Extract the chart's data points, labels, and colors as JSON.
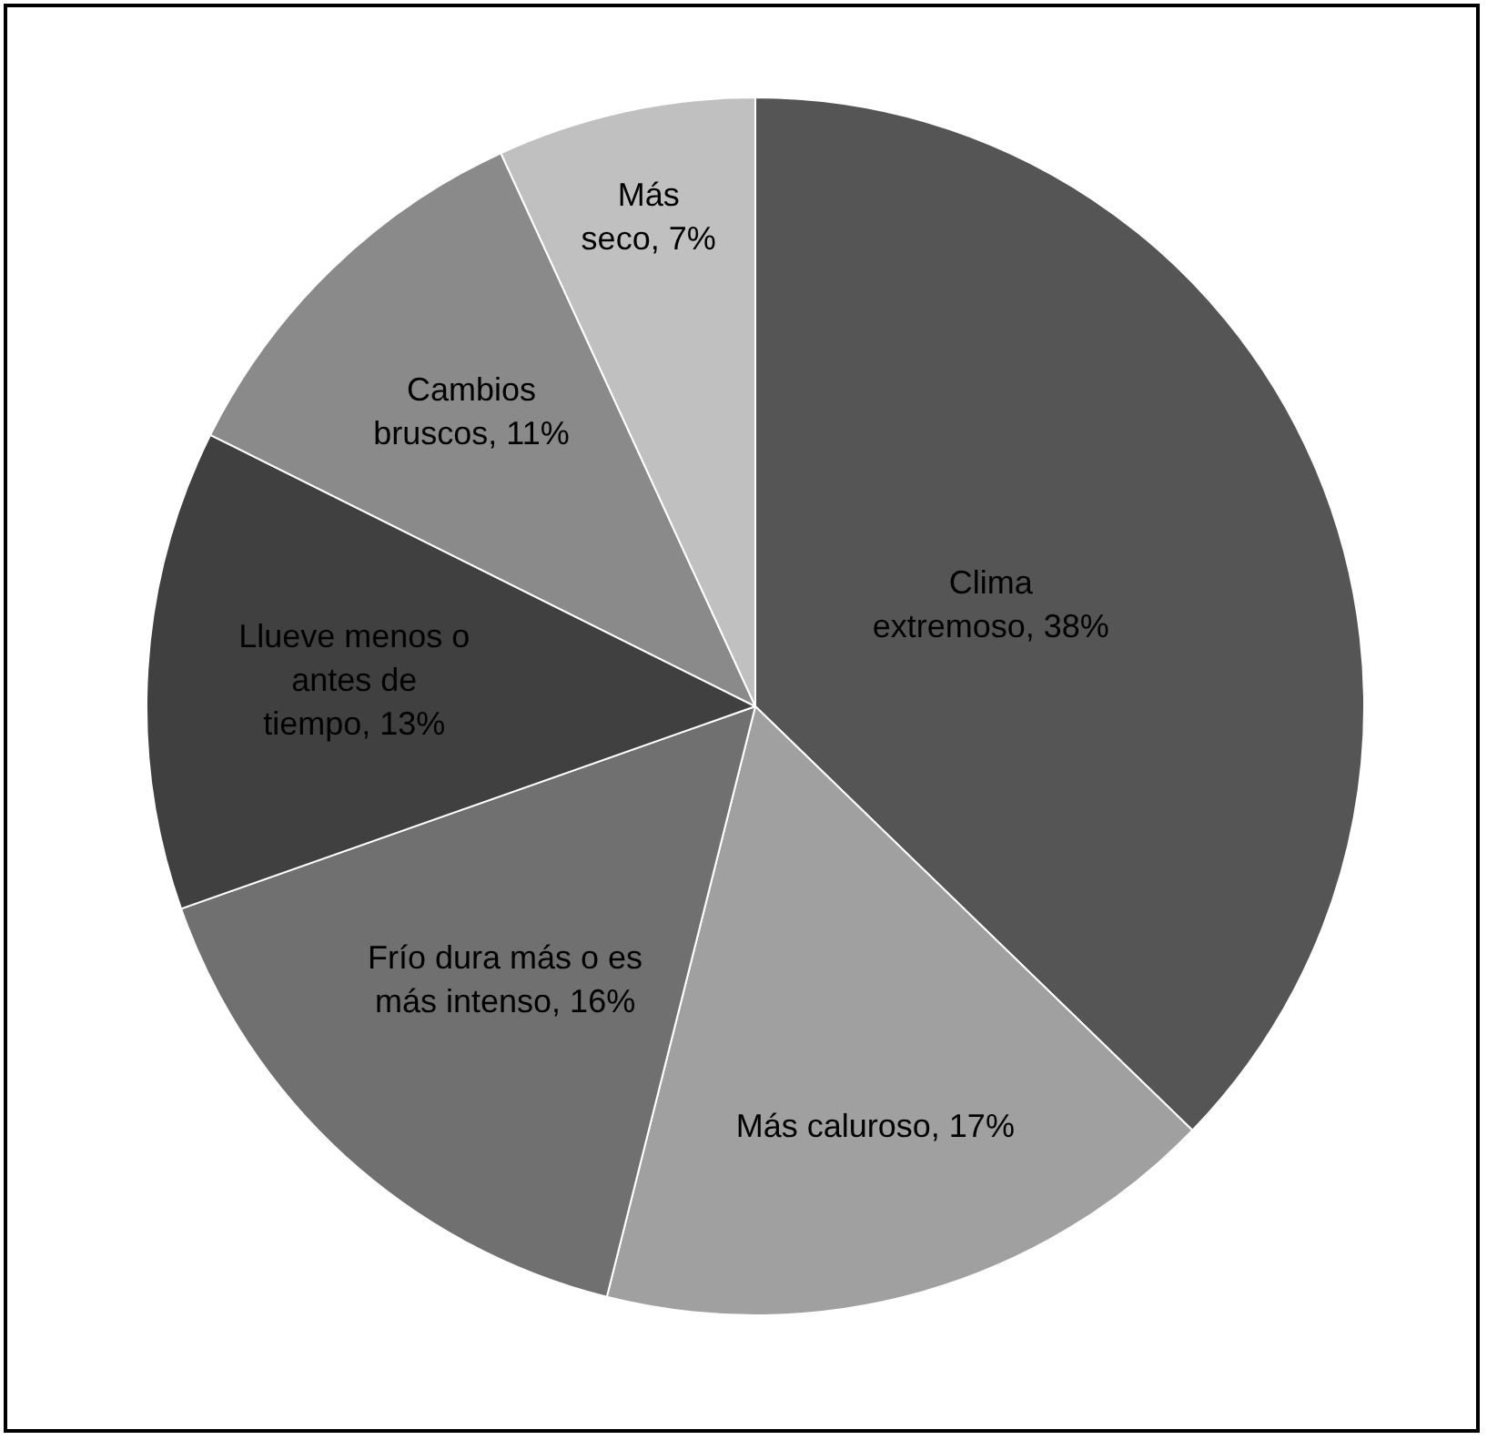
{
  "chart_data": {
    "type": "pie",
    "categories": [
      "Clima extremoso",
      "Más caluroso",
      "Frío dura más o es más intenso",
      "Llueve menos o antes de tiempo",
      "Cambios bruscos",
      "Más seco"
    ],
    "values": [
      38,
      17,
      16,
      13,
      11,
      7
    ],
    "value_labels": [
      "38%",
      "17%",
      "16%",
      "13%",
      "11%",
      "7%"
    ],
    "colors": [
      "#555555",
      "#a0a0a0",
      "#707070",
      "#404040",
      "#8a8a8a",
      "#c0c0c0"
    ],
    "legend": false
  }
}
